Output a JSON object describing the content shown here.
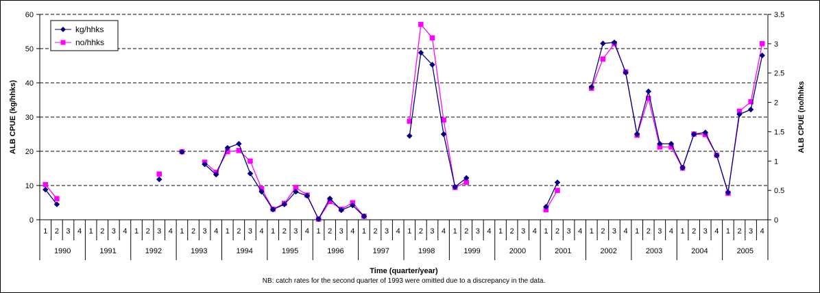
{
  "chart_data": {
    "type": "line",
    "title": "",
    "xlabel": "Time (quarter/year)",
    "ylabel_left": "ALB CPUE (kg/hhks)",
    "ylabel_right": "ALB CPUE (no/hhks",
    "note": "NB: catch rates for the second quarter of 1993 were omitted due to a discrepancy in the data.",
    "ylim_left": [
      0,
      60
    ],
    "ylim_right": [
      0,
      3.5
    ],
    "yticks_left": [
      "0",
      "10",
      "20",
      "30",
      "40",
      "50",
      "60"
    ],
    "yticks_right": [
      "0",
      "0.5",
      "1",
      "1.5",
      "2",
      "2.5",
      "3",
      "3.5"
    ],
    "grid": "horizontal dashed",
    "legend_position": "top-left",
    "years": [
      "1990",
      "1991",
      "1992",
      "1993",
      "1994",
      "1995",
      "1996",
      "1997",
      "1998",
      "1999",
      "2000",
      "2001",
      "2002",
      "2003",
      "2004",
      "2005"
    ],
    "quarters": [
      "1",
      "2",
      "3",
      "4"
    ],
    "series": [
      {
        "name": "kg/hhks",
        "axis": "left",
        "color": "#000080",
        "marker": "diamond",
        "values": [
          8.8,
          4.5,
          null,
          null,
          null,
          null,
          null,
          null,
          null,
          null,
          11.8,
          null,
          19.8,
          null,
          16.2,
          13.2,
          21.0,
          22.2,
          13.5,
          8.2,
          3.0,
          4.5,
          8.2,
          7.0,
          0.2,
          6.2,
          2.8,
          4.2,
          1.0,
          null,
          null,
          null,
          24.5,
          48.8,
          45.3,
          25.0,
          9.6,
          12.2,
          null,
          null,
          null,
          null,
          null,
          null,
          3.8,
          10.9,
          null,
          null,
          38.8,
          51.5,
          51.8,
          43.0,
          25.0,
          37.5,
          22.2,
          22.2,
          15.2,
          25.0,
          25.5,
          18.8,
          8.0,
          30.8,
          32.2,
          48.0
        ]
      },
      {
        "name": "no/hhks",
        "axis": "right",
        "color": "#ff00ff",
        "marker": "square",
        "values": [
          0.6,
          0.36,
          null,
          null,
          null,
          null,
          null,
          null,
          null,
          null,
          0.78,
          null,
          1.16,
          null,
          0.98,
          0.81,
          1.16,
          1.18,
          1.0,
          0.53,
          0.18,
          0.28,
          0.55,
          0.42,
          0.01,
          0.31,
          0.18,
          0.29,
          0.06,
          null,
          null,
          null,
          1.68,
          3.33,
          3.1,
          1.7,
          0.55,
          0.64,
          null,
          null,
          null,
          null,
          null,
          null,
          0.17,
          0.5,
          null,
          null,
          2.24,
          2.74,
          3.0,
          2.52,
          1.44,
          2.07,
          1.24,
          1.24,
          0.88,
          1.46,
          1.45,
          1.1,
          0.45,
          1.85,
          2.01,
          3.0
        ]
      }
    ]
  }
}
